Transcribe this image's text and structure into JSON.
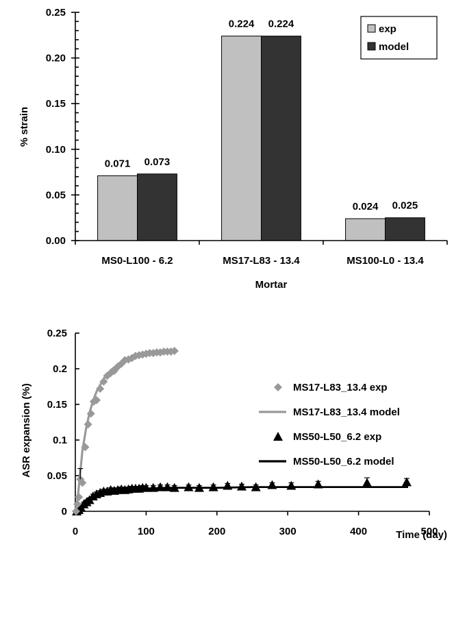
{
  "chart_data": [
    {
      "type": "bar",
      "title": "",
      "xlabel": "Mortar",
      "ylabel": "% strain",
      "ylim": [
        0,
        0.25
      ],
      "yticks": [
        "0.00",
        "0.05",
        "0.10",
        "0.15",
        "0.20",
        "0.25"
      ],
      "categories": [
        "MS0-L100 - 6.2",
        "MS17-L83 - 13.4",
        "MS100-L0 - 13.4"
      ],
      "series": [
        {
          "name": "exp",
          "color": "#c0c0c0",
          "values": [
            0.071,
            0.224,
            0.024
          ],
          "labels": [
            "0.071",
            "0.224",
            "0.024"
          ]
        },
        {
          "name": "model",
          "color": "#333333",
          "values": [
            0.073,
            0.224,
            0.025
          ],
          "labels": [
            "0.073",
            "0.224",
            "0.025"
          ]
        }
      ],
      "legend_position": "top-right",
      "grid": false
    },
    {
      "type": "scatter",
      "title": "",
      "xlabel": "Time (day)",
      "ylabel": "ASR expansion (%)",
      "xlim": [
        0,
        500
      ],
      "ylim": [
        0,
        0.25
      ],
      "xticks": [
        "0",
        "100",
        "200",
        "300",
        "400",
        "500"
      ],
      "yticks": [
        "0",
        "0.05",
        "0.1",
        "0.15",
        "0.2",
        "0.25"
      ],
      "legend_position": "right",
      "grid": false,
      "series": [
        {
          "name": "MS17-L83_13.4 exp",
          "kind": "points",
          "marker": "diamond",
          "color": "#999999",
          "x": [
            1,
            3,
            5,
            7,
            10,
            14,
            18,
            22,
            26,
            30,
            35,
            40,
            45,
            50,
            55,
            60,
            65,
            70,
            75,
            80,
            85,
            90,
            95,
            100,
            105,
            110,
            115,
            120,
            125,
            130,
            135,
            140
          ],
          "y": [
            0.0,
            0.01,
            0.02,
            0.045,
            0.04,
            0.09,
            0.122,
            0.137,
            0.154,
            0.156,
            0.172,
            0.182,
            0.19,
            0.194,
            0.197,
            0.203,
            0.207,
            0.212,
            0.213,
            0.215,
            0.218,
            0.219,
            0.22,
            0.221,
            0.222,
            0.222,
            0.223,
            0.223,
            0.224,
            0.224,
            0.224,
            0.225
          ]
        },
        {
          "name": "MS17-L83_13.4 model",
          "kind": "line",
          "color": "#999999",
          "x": [
            0,
            3,
            6,
            10,
            15,
            20,
            25,
            30,
            40,
            50,
            60,
            70,
            80,
            90,
            100,
            110,
            120,
            130,
            145
          ],
          "y": [
            0.0,
            0.015,
            0.045,
            0.085,
            0.115,
            0.138,
            0.155,
            0.168,
            0.186,
            0.198,
            0.206,
            0.212,
            0.216,
            0.219,
            0.221,
            0.222,
            0.223,
            0.224,
            0.225
          ]
        },
        {
          "name": "MS50-L50_6.2 exp",
          "kind": "points",
          "marker": "triangle",
          "color": "#000000",
          "x": [
            2,
            5,
            8,
            12,
            16,
            20,
            25,
            30,
            35,
            40,
            45,
            50,
            55,
            60,
            65,
            70,
            75,
            80,
            85,
            90,
            95,
            100,
            110,
            120,
            130,
            140,
            160,
            175,
            195,
            215,
            235,
            255,
            278,
            305,
            343,
            412,
            468
          ],
          "y": [
            0.0,
            0.002,
            0.005,
            0.01,
            0.013,
            0.016,
            0.021,
            0.024,
            0.026,
            0.028,
            0.028,
            0.03,
            0.029,
            0.03,
            0.031,
            0.03,
            0.031,
            0.032,
            0.032,
            0.032,
            0.033,
            0.033,
            0.033,
            0.034,
            0.034,
            0.033,
            0.034,
            0.033,
            0.034,
            0.036,
            0.035,
            0.034,
            0.037,
            0.036,
            0.038,
            0.04,
            0.041
          ],
          "error": [
            0.0,
            0.002,
            0.004,
            0.003,
            0.003,
            0.003,
            0.003,
            0.003,
            0.003,
            0.003,
            0.003,
            0.003,
            0.003,
            0.003,
            0.003,
            0.003,
            0.003,
            0.003,
            0.003,
            0.003,
            0.003,
            0.003,
            0.003,
            0.003,
            0.003,
            0.003,
            0.003,
            0.003,
            0.003,
            0.003,
            0.003,
            0.003,
            0.003,
            0.004,
            0.004,
            0.007,
            0.005
          ]
        },
        {
          "name": "MS50-L50_6.2 model",
          "kind": "line",
          "color": "#000000",
          "x": [
            0,
            5,
            10,
            15,
            20,
            30,
            40,
            50,
            60,
            80,
            100,
            130,
            160,
            200,
            250,
            300,
            350,
            400,
            470
          ],
          "y": [
            0.0,
            0.005,
            0.01,
            0.015,
            0.019,
            0.024,
            0.027,
            0.029,
            0.03,
            0.031,
            0.032,
            0.033,
            0.033,
            0.033,
            0.034,
            0.034,
            0.034,
            0.034,
            0.034
          ]
        },
        {
          "name": "",
          "kind": "errorbars-only",
          "color": "#000000",
          "x": [
            7
          ],
          "y": [
            0.045
          ],
          "error": [
            0.015
          ]
        }
      ]
    }
  ]
}
